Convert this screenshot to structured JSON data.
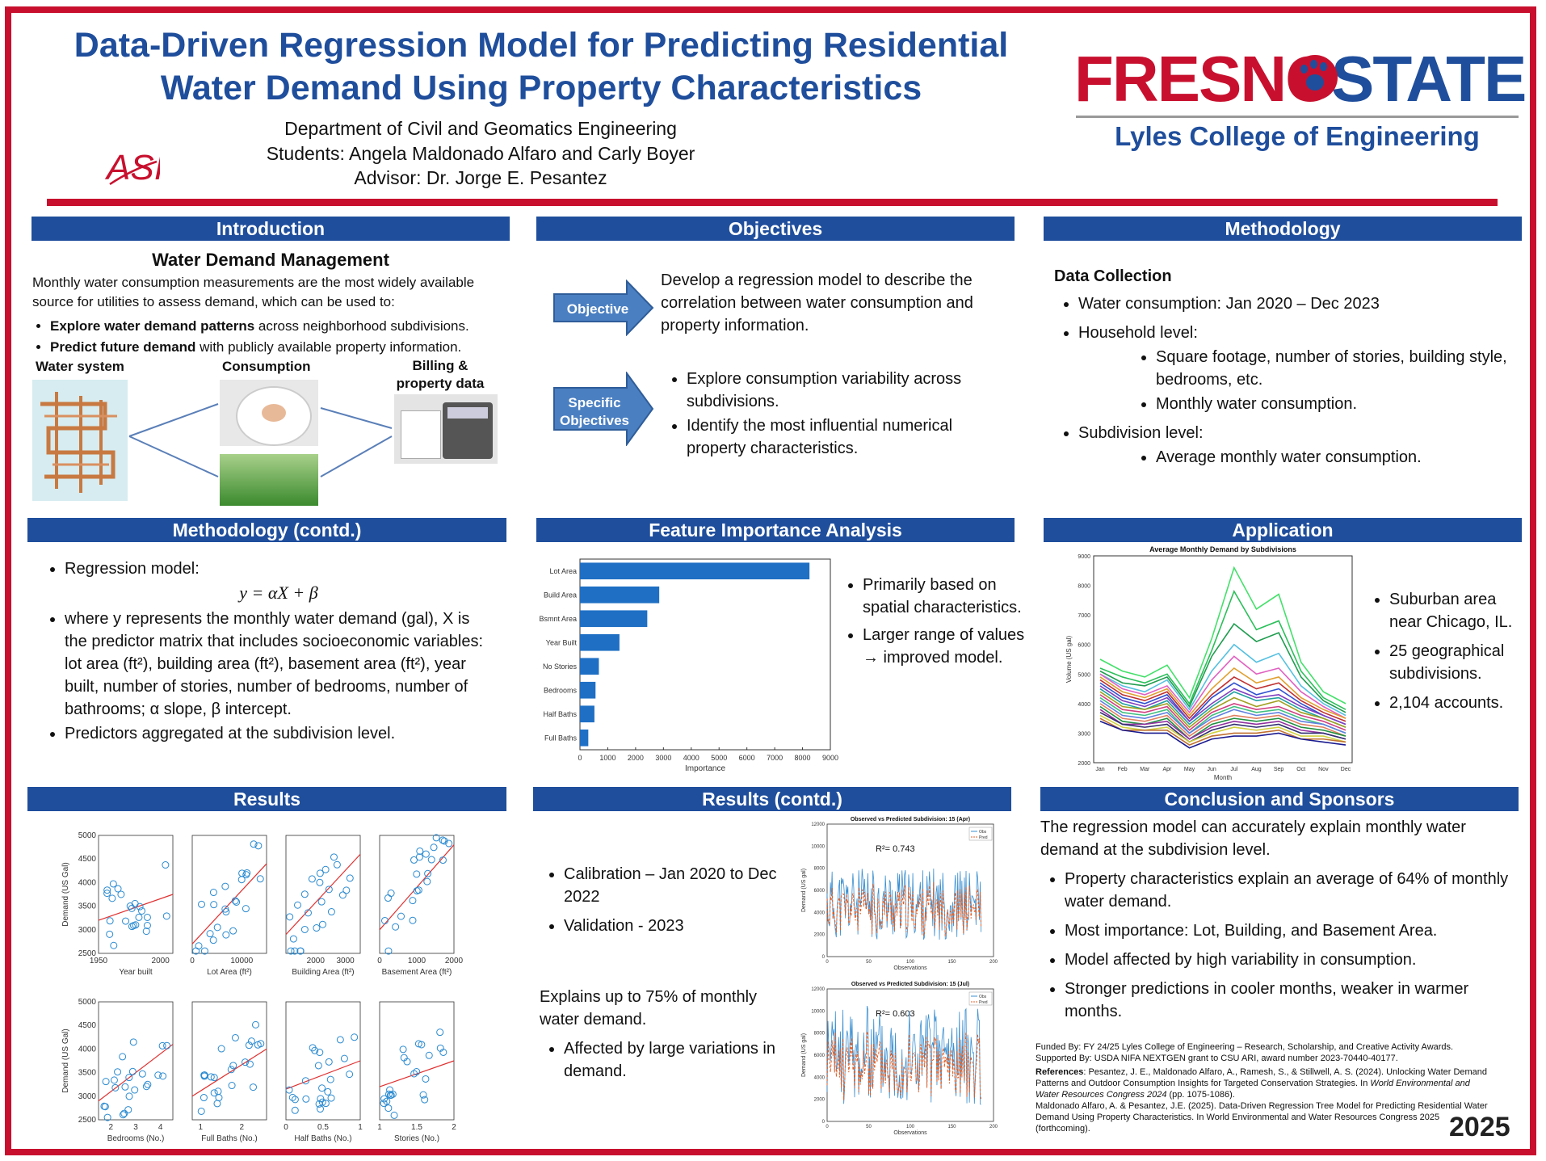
{
  "header": {
    "title_line1": "Data-Driven Regression Model for Predicting Residential",
    "title_line2": "Water Demand Using Property Characteristics",
    "dept": "Department of Civil and Geomatics Engineering",
    "students": "Students: Angela Maldonado Alfaro and Carly Boyer",
    "advisor": "Advisor: Dr. Jorge E. Pesantez",
    "logo_left": "ASI",
    "logo_right_fresno": "FRESNO",
    "logo_right_state": "STATE",
    "college": "Lyles College of Engineering"
  },
  "intro": {
    "header": "Introduction",
    "subtitle": "Water Demand Management",
    "para": "Monthly water consumption measurements are the most widely available source for utilities to assess demand, which can be used to:",
    "b1_bold": "Explore water demand patterns",
    "b1_rest": " across neighborhood subdivisions.",
    "b2_bold": "Predict future demand",
    "b2_rest": " with publicly available property information.",
    "img1": "Water system",
    "img2": "Consumption",
    "img3": "Billing & property data"
  },
  "objectives": {
    "header": "Objectives",
    "arrow1": "Objective",
    "text1": "Develop a regression model to describe the correlation between water consumption and property information.",
    "arrow2_l1": "Specific",
    "arrow2_l2": "Objectives",
    "s1": "Explore consumption variability across subdivisions.",
    "s2": "Identify the most influential numerical property characteristics."
  },
  "methodology": {
    "header": "Methodology",
    "sub": "Data Collection",
    "b1": "Water consumption: Jan 2020 – Dec 2023",
    "b2": "Household level:",
    "b2a": "Square footage, number of stories, building style, bedrooms, etc.",
    "b2b": "Monthly water consumption.",
    "b3": "Subdivision level:",
    "b3a": "Average monthly water consumption."
  },
  "method2": {
    "header": "Methodology (contd.)",
    "b1": "Regression model:",
    "eq": "y = αX + β",
    "b2": "where y represents the monthly water demand (gal), X is the predictor matrix that includes socioeconomic variables: lot area (ft²), building area (ft²), basement area (ft²), year built, number of stories, number of bedrooms, number of bathrooms; α slope, β intercept.",
    "b3": "Predictors aggregated at the subdivision level."
  },
  "feature": {
    "header": "Feature Importance Analysis",
    "b1": "Primarily based on spatial characteristics.",
    "b2": "Larger range of values → improved model."
  },
  "application": {
    "header": "Application",
    "b1": "Suburban area near Chicago, IL.",
    "b2": "25 geographical subdivisions.",
    "b3": "2,104 accounts."
  },
  "results": {
    "header": "Results"
  },
  "results2": {
    "header": "Results (contd.)",
    "b1": "Calibration – Jan 2020 to Dec 2022",
    "b2": "Validation - 2023",
    "para": "Explains up to 75% of monthly water demand.",
    "b3": "Affected by large variations in demand."
  },
  "conclusion": {
    "header": "Conclusion and Sponsors",
    "para": "The regression model can accurately explain monthly water demand at the subdivision level.",
    "b1": "Property characteristics explain an average of 64% of monthly water demand.",
    "b2": "Most importance: Lot, Building, and Basement Area.",
    "b3": "Model affected by high variability in consumption.",
    "b4": "Stronger predictions in cooler months, weaker in warmer months.",
    "funded": "Funded By: FY 24/25 Lyles College of Engineering – Research, Scholarship, and Creative Activity Awards.",
    "supported": "Supported By: USDA NIFA NEXTGEN grant to CSU ARI, award number 2023-70440-40177.",
    "ref_label": "References",
    "ref1a": ": Pesantez, J. E., Maldonado Alfaro, A., Ramesh, S., & Stillwell, A. S. (2024). Unlocking Water Demand Patterns and Outdoor Consumption Insights for Targeted Conservation Strategies. In ",
    "ref1b": "World Environmental and Water Resources Congress 2024",
    "ref1c": " (pp. 1075-1086).",
    "ref2": "Maldonado Alfaro, A. & Pesantez, J.E. (2025). Data-Driven Regression Tree Model for Predicting Residential Water Demand Using Property Characteristics. In World Environmental and Water Resources Congress 2025 (forthcoming).",
    "year": "2025"
  },
  "chart_data": [
    {
      "type": "bar",
      "orientation": "horizontal",
      "categories": [
        "Lot Area",
        "Build Area",
        "Bsmnt Area",
        "Year Built",
        "No Stories",
        "Bedrooms",
        "Half Baths",
        "Full Baths"
      ],
      "values": [
        8250,
        2850,
        2420,
        1420,
        680,
        560,
        520,
        300
      ],
      "xlabel": "Importance",
      "xlim": [
        0,
        9000
      ],
      "xticks": [
        0,
        1000,
        2000,
        3000,
        4000,
        5000,
        6000,
        7000,
        8000,
        9000
      ],
      "color": "#1f6fc4"
    },
    {
      "type": "line",
      "title": "Average Monthly Demand by Subdivisions",
      "xlabel": "Month",
      "ylabel": "Volume (US gal)",
      "categories": [
        "Jan",
        "Feb",
        "Mar",
        "Apr",
        "May",
        "Jun",
        "Jul",
        "Aug",
        "Sep",
        "Oct",
        "Nov",
        "Dec"
      ],
      "ylim": [
        2000,
        9000
      ],
      "yticks": [
        2000,
        3000,
        4000,
        5000,
        6000,
        7000,
        8000,
        9000
      ],
      "series": [
        {
          "values": [
            5500,
            5100,
            4900,
            5300,
            4200,
            6200,
            8600,
            7200,
            7700,
            5400,
            4400,
            4000
          ],
          "color": "#44e06a"
        },
        {
          "values": [
            5200,
            4900,
            4700,
            5000,
            4000,
            5800,
            7800,
            6500,
            6800,
            5100,
            4200,
            3800
          ],
          "color": "#2bbf5a"
        },
        {
          "values": [
            5100,
            4700,
            4600,
            4900,
            3900,
            5600,
            6700,
            6100,
            6400,
            4900,
            4100,
            3700
          ],
          "color": "#1e9c4e"
        },
        {
          "values": [
            5000,
            4600,
            4400,
            4800,
            3800,
            5100,
            6000,
            5400,
            5700,
            4600,
            4000,
            3600
          ],
          "color": "#56c0e0"
        },
        {
          "values": [
            5000,
            4500,
            4300,
            4600,
            3700,
            4800,
            5600,
            5000,
            5200,
            4400,
            3900,
            3500
          ],
          "color": "#e060c0"
        },
        {
          "values": [
            4900,
            4400,
            4200,
            4500,
            3600,
            4500,
            5200,
            4700,
            4900,
            4200,
            3800,
            3500
          ],
          "color": "#e0a030"
        },
        {
          "values": [
            4800,
            4300,
            4100,
            4400,
            3500,
            4300,
            4900,
            4500,
            4700,
            4100,
            3700,
            3400
          ],
          "color": "#c03030"
        },
        {
          "values": [
            4700,
            4200,
            4000,
            4300,
            3400,
            4200,
            4700,
            4300,
            4500,
            4000,
            3600,
            3300
          ],
          "color": "#3050d0"
        },
        {
          "values": [
            4600,
            4100,
            3900,
            4200,
            3400,
            4000,
            4500,
            4200,
            4300,
            3900,
            3600,
            3300
          ],
          "color": "#8040c0"
        },
        {
          "values": [
            4500,
            4000,
            3800,
            4100,
            3300,
            3900,
            4400,
            4100,
            4200,
            3800,
            3500,
            3200
          ],
          "color": "#20a0a0"
        },
        {
          "values": [
            4400,
            3900,
            3800,
            4000,
            3200,
            3800,
            4200,
            3900,
            4100,
            3700,
            3500,
            3200
          ],
          "color": "#a0a020"
        },
        {
          "values": [
            4300,
            3800,
            3700,
            3900,
            3100,
            3700,
            4000,
            3800,
            3900,
            3600,
            3400,
            3100
          ],
          "color": "#d04080"
        },
        {
          "values": [
            4200,
            3700,
            3600,
            3800,
            3000,
            3600,
            3900,
            3700,
            3800,
            3500,
            3300,
            3000
          ],
          "color": "#40c080"
        },
        {
          "values": [
            4100,
            3600,
            3500,
            3700,
            3000,
            3500,
            3800,
            3600,
            3700,
            3400,
            3300,
            3000
          ],
          "color": "#6080e0"
        },
        {
          "values": [
            4000,
            3500,
            3400,
            3600,
            2900,
            3400,
            3600,
            3500,
            3600,
            3300,
            3200,
            2900
          ],
          "color": "#e08060"
        },
        {
          "values": [
            3900,
            3400,
            3300,
            3500,
            2800,
            3300,
            3500,
            3400,
            3500,
            3200,
            3100,
            2900
          ],
          "color": "#209040"
        },
        {
          "values": [
            3800,
            3300,
            3300,
            3400,
            2800,
            3200,
            3400,
            3300,
            3400,
            3100,
            3000,
            2800
          ],
          "color": "#9030a0"
        },
        {
          "values": [
            3700,
            3300,
            3200,
            3300,
            2700,
            3100,
            3300,
            3200,
            3300,
            3000,
            3000,
            2800
          ],
          "color": "#303070"
        },
        {
          "values": [
            3600,
            3200,
            3100,
            3200,
            2700,
            3000,
            3200,
            3100,
            3200,
            2900,
            2900,
            2700
          ],
          "color": "#d0d040"
        },
        {
          "values": [
            3500,
            3100,
            3100,
            3100,
            2600,
            2900,
            3000,
            3000,
            3100,
            2800,
            2800,
            2700
          ],
          "color": "#c07030"
        },
        {
          "values": [
            3400,
            3100,
            3000,
            3000,
            2500,
            2800,
            2900,
            2900,
            3000,
            2800,
            2700,
            2600
          ],
          "color": "#1a1a90"
        }
      ]
    },
    {
      "type": "scatter",
      "ylabel": "Demand (US Gal)",
      "ylim": [
        2500,
        5000
      ],
      "yticks": [
        2500,
        3000,
        3500,
        4000,
        4500,
        5000
      ],
      "panels": [
        {
          "xlabel": "Year built",
          "xlim": [
            1950,
            2010
          ],
          "xticks": [
            1950,
            2000
          ],
          "fit": [
            3200,
            3750
          ]
        },
        {
          "xlabel": "Lot Area (ft²)",
          "xlim": [
            0,
            15000
          ],
          "xticks": [
            0,
            10000
          ],
          "fit": [
            2700,
            4400
          ]
        },
        {
          "xlabel": "Building Area (ft²)",
          "xlim": [
            1000,
            3500
          ],
          "xticks": [
            2000,
            3000
          ],
          "fit": [
            2900,
            4600
          ]
        },
        {
          "xlabel": "Basement Area (ft²)",
          "xlim": [
            0,
            2000
          ],
          "xticks": [
            0,
            1000,
            2000
          ],
          "fit": [
            3000,
            4800
          ]
        },
        {
          "xlabel": "Bedrooms (No.)",
          "xlim": [
            1.5,
            4.5
          ],
          "xticks": [
            2,
            3,
            4
          ],
          "fit": [
            2900,
            4100
          ]
        },
        {
          "xlabel": "Full Baths (No.)",
          "xlim": [
            0.8,
            2.6
          ],
          "xticks": [
            1,
            2
          ],
          "fit": [
            3000,
            4000
          ]
        },
        {
          "xlabel": "Half Baths (No.)",
          "xlim": [
            0,
            1
          ],
          "xticks": [
            0,
            0.5,
            1
          ],
          "fit": [
            3150,
            3750
          ]
        },
        {
          "xlabel": "Stories (No.)",
          "xlim": [
            1,
            2
          ],
          "xticks": [
            1,
            1.5,
            2
          ],
          "fit": [
            3200,
            3750
          ]
        }
      ]
    },
    {
      "type": "line",
      "title": "Observed vs Predicted Subdivision: 15 (Apr)",
      "annotation": "R²= 0.743",
      "xlabel": "Observations",
      "ylabel": "Demand (US gal)",
      "xlim": [
        0,
        200
      ],
      "ylim": [
        0,
        12000
      ],
      "legend": [
        "Obs",
        "Pred"
      ]
    },
    {
      "type": "line",
      "title": "Observed vs Predicted Subdivision: 15 (Jul)",
      "annotation": "R²= 0.603",
      "xlabel": "Observations",
      "ylabel": "Demand (US gal)",
      "xlim": [
        0,
        200
      ],
      "ylim": [
        0,
        12000
      ],
      "legend": [
        "Obs",
        "Pred"
      ]
    }
  ]
}
